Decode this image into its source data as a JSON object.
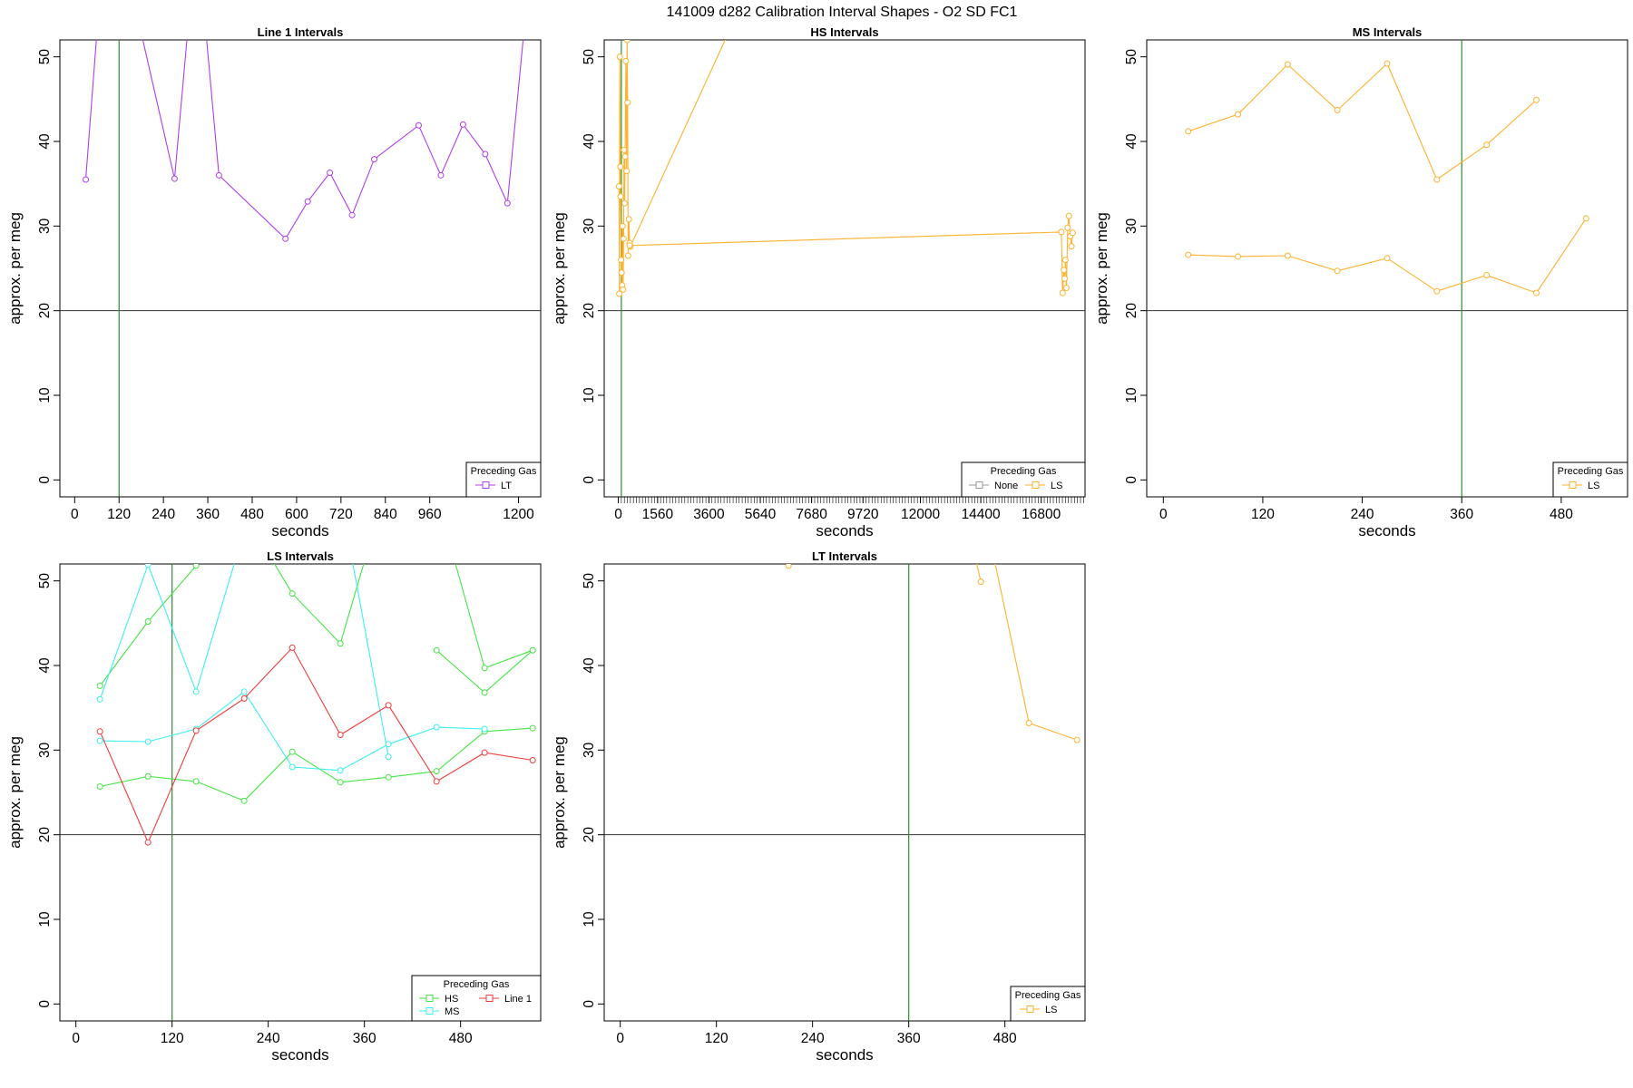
{
  "main_title": "141009   d282   Calibration Interval Shapes - O2 SD FC1",
  "chart_data": [
    {
      "type": "line",
      "title": "Line 1 Intervals",
      "xlabel": "seconds",
      "ylabel": "approx. per meg",
      "xlim": [
        -40,
        1260
      ],
      "ylim": [
        -2,
        52
      ],
      "xticks": [
        0,
        120,
        240,
        360,
        480,
        600,
        720,
        840,
        960,
        1200
      ],
      "yticks": [
        0,
        10,
        20,
        30,
        40,
        50
      ],
      "hline": 20,
      "vline": 120,
      "legend": {
        "title": "Preceding Gas",
        "position": "bottom-right",
        "entries": [
          {
            "name": "LT",
            "color": "#B03CF0"
          }
        ]
      },
      "series": [
        {
          "name": "LT",
          "color": "#B03CF0",
          "x": [
            30,
            90,
            270,
            330,
            390,
            570,
            630,
            690,
            750,
            810,
            930,
            990,
            1050,
            1110,
            1170,
            1230
          ],
          "y": [
            35.5,
            70,
            35.6,
            65,
            36,
            28.5,
            32.9,
            36.3,
            31.3,
            37.9,
            41.9,
            36,
            42,
            38.5,
            32.7,
            60
          ]
        }
      ]
    },
    {
      "type": "line",
      "title": "HS Intervals",
      "xlabel": "seconds",
      "ylabel": "approx. per meg",
      "xlim": [
        -560,
        18540
      ],
      "ylim": [
        -2,
        52
      ],
      "xticks": [
        0,
        1560,
        3600,
        5640,
        7680,
        9720,
        12000,
        14400,
        16800
      ],
      "yticks": [
        0,
        10,
        20,
        30,
        40,
        50
      ],
      "minor_tick_step": 120,
      "hline": 20,
      "vline": 120,
      "legend": {
        "title": "Preceding Gas",
        "position": "bottom-right",
        "entries": [
          {
            "name": "None",
            "color": "#9A9A9A"
          },
          {
            "name": "LS",
            "color": "#FFB22E"
          }
        ]
      },
      "series": [
        {
          "name": "LS",
          "color": "#FFB22E",
          "x": [
            30,
            40,
            60,
            80,
            90,
            110,
            130,
            150,
            170,
            190,
            210,
            230,
            250,
            270,
            300,
            330,
            350,
            370,
            390,
            420,
            450,
            480,
            4400
          ],
          "y": [
            34.7,
            22,
            50,
            37,
            33.5,
            26,
            24.5,
            23,
            30,
            22.5,
            28.5,
            39,
            32.7,
            38.2,
            49.5,
            36.5,
            52,
            44.6,
            26.5,
            30.8,
            28,
            27.6,
            53
          ]
        },
        {
          "name": "LS",
          "color": "#FFB22E",
          "x": [
            450,
            17600,
            17650,
            17700,
            17730,
            17760,
            17800,
            17850,
            17900,
            17950,
            18000,
            18050
          ],
          "y": [
            27.7,
            29.3,
            22.1,
            24.8,
            23.8,
            26,
            22.7,
            29.8,
            31.2,
            28.8,
            27.6,
            29.2
          ]
        }
      ]
    },
    {
      "type": "line",
      "title": "MS Intervals",
      "xlabel": "seconds",
      "ylabel": "approx. per meg",
      "xlim": [
        -20,
        560
      ],
      "ylim": [
        -2,
        52
      ],
      "xticks": [
        0,
        120,
        240,
        360,
        480
      ],
      "yticks": [
        0,
        10,
        20,
        30,
        40,
        50
      ],
      "hline": 20,
      "vline": 360,
      "legend": {
        "title": "Preceding Gas",
        "position": "bottom-right",
        "entries": [
          {
            "name": "LS",
            "color": "#FFB22E"
          }
        ]
      },
      "series": [
        {
          "name": "LS",
          "color": "#FFB22E",
          "x": [
            30,
            90,
            150,
            210,
            270,
            330,
            390,
            450
          ],
          "y": [
            41.2,
            43.2,
            49.1,
            43.7,
            49.2,
            35.5,
            39.6,
            44.9
          ]
        },
        {
          "name": "LS",
          "color": "#FFB22E",
          "x": [
            30,
            90,
            150,
            210,
            270,
            330,
            390,
            450,
            510
          ],
          "y": [
            26.6,
            26.4,
            26.5,
            24.7,
            26.2,
            22.3,
            24.2,
            22.1,
            30.9
          ]
        }
      ]
    },
    {
      "type": "line",
      "title": "LS Intervals",
      "xlabel": "seconds",
      "ylabel": "approx. per meg",
      "xlim": [
        -20,
        580
      ],
      "ylim": [
        -2,
        52
      ],
      "xticks": [
        0,
        120,
        240,
        360,
        480
      ],
      "yticks": [
        0,
        10,
        20,
        30,
        40,
        50
      ],
      "hline": 20,
      "vline": 120,
      "legend": {
        "title": "Preceding Gas",
        "position": "bottom-right",
        "entries": [
          {
            "name": "HS",
            "color": "#45E645"
          },
          {
            "name": "Line 1",
            "color": "#F03C3C"
          },
          {
            "name": "MS",
            "color": "#3CF0F0"
          }
        ]
      },
      "series": [
        {
          "name": "HS",
          "color": "#45E645",
          "x": [
            30,
            90,
            150,
            210,
            270,
            330,
            390,
            450,
            510,
            570
          ],
          "y": [
            37.6,
            45.2,
            51.8,
            58,
            48.5,
            42.6,
            62,
            60,
            39.7,
            41.8
          ]
        },
        {
          "name": "HS",
          "color": "#45E645",
          "x": [
            450,
            510,
            570
          ],
          "y": [
            41.8,
            36.8,
            41.8
          ]
        },
        {
          "name": "HS",
          "color": "#45E645",
          "x": [
            30,
            90,
            150,
            210,
            270,
            330,
            390,
            450,
            510,
            570
          ],
          "y": [
            25.7,
            26.9,
            26.3,
            24,
            29.8,
            26.2,
            26.8,
            27.5,
            32.2,
            32.6
          ]
        },
        {
          "name": "MS",
          "color": "#3CF0F0",
          "x": [
            30,
            90,
            150,
            210,
            270,
            330,
            390
          ],
          "y": [
            36,
            51.9,
            36.9,
            56,
            60,
            60,
            29.2
          ]
        },
        {
          "name": "MS",
          "color": "#3CF0F0",
          "x": [
            30,
            90,
            150,
            210,
            270,
            330,
            390,
            450,
            510
          ],
          "y": [
            31.1,
            31,
            32.5,
            36.9,
            28,
            27.6,
            30.7,
            32.7,
            32.5
          ]
        },
        {
          "name": "Line 1",
          "color": "#F03C3C",
          "x": [
            30,
            90,
            150,
            210,
            270,
            330,
            390,
            450,
            510,
            570
          ],
          "y": [
            32.2,
            19.1,
            32.3,
            36.1,
            42.1,
            31.8,
            35.3,
            26.3,
            29.7,
            28.8
          ]
        }
      ]
    },
    {
      "type": "line",
      "title": "LT Intervals",
      "xlabel": "seconds",
      "ylabel": "approx. per meg",
      "xlim": [
        -20,
        580
      ],
      "ylim": [
        -2,
        52
      ],
      "xticks": [
        0,
        120,
        240,
        360,
        480
      ],
      "yticks": [
        0,
        10,
        20,
        30,
        40,
        50
      ],
      "hline": 20,
      "vline": 360,
      "legend": {
        "title": "Preceding Gas",
        "position": "bottom-right",
        "entries": [
          {
            "name": "LS",
            "color": "#FFB22E"
          }
        ]
      },
      "series": [
        {
          "name": "LS",
          "color": "#FFB22E",
          "x": [
            180,
            210
          ],
          "y": [
            56,
            51.8
          ]
        },
        {
          "name": "LS",
          "color": "#FFB22E",
          "x": [
            450,
            510,
            570
          ],
          "y": [
            60,
            33.2,
            31.2
          ]
        },
        {
          "name": "LS",
          "color": "#FFB22E",
          "x": [
            420,
            450
          ],
          "y": [
            62,
            49.9
          ]
        }
      ]
    }
  ]
}
